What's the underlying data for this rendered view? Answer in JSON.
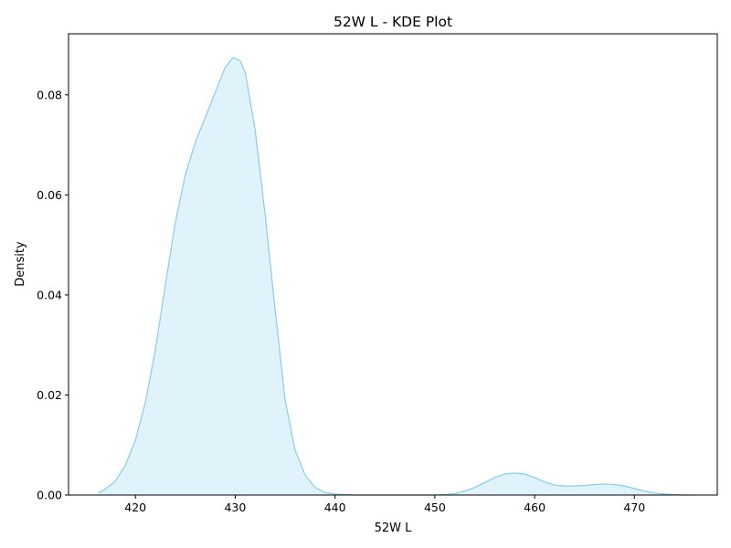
{
  "chart_data": {
    "type": "area",
    "title": "52W L  - KDE Plot",
    "xlabel": "52W L",
    "ylabel": "Density",
    "xlim": [
      413.3,
      478.3
    ],
    "ylim": [
      0,
      0.0922
    ],
    "xticks": [
      420,
      430,
      440,
      450,
      460,
      470
    ],
    "yticks": [
      0.0,
      0.02,
      0.04,
      0.06,
      0.08
    ],
    "ytick_labels": [
      "0.00",
      "0.02",
      "0.04",
      "0.06",
      "0.08"
    ],
    "grid": false,
    "legend": "none",
    "series": [
      {
        "x": [
          416.3,
          417,
          418,
          419,
          420,
          421,
          422,
          423,
          424,
          425,
          426,
          427,
          428,
          429,
          429.8,
          430.5,
          431,
          432,
          433,
          434,
          435,
          436,
          437,
          438,
          439,
          440,
          441,
          442,
          444,
          446,
          448,
          450,
          451,
          452,
          453,
          454,
          455,
          456,
          457,
          458,
          459,
          460,
          461,
          462,
          463,
          464,
          465,
          466,
          467,
          468,
          469,
          470,
          471,
          472,
          473,
          474,
          475,
          475.6
        ],
        "y": [
          0.0004,
          0.0012,
          0.0028,
          0.006,
          0.011,
          0.0185,
          0.029,
          0.042,
          0.0545,
          0.064,
          0.0705,
          0.0755,
          0.0805,
          0.0855,
          0.0875,
          0.0868,
          0.0845,
          0.073,
          0.056,
          0.037,
          0.019,
          0.009,
          0.004,
          0.0015,
          0.0005,
          0.0002,
          0.0001,
          0.0,
          0.0,
          0.0,
          0.0,
          0.0,
          0.0001,
          0.0003,
          0.0008,
          0.0015,
          0.0025,
          0.0035,
          0.0042,
          0.0044,
          0.0042,
          0.0035,
          0.0026,
          0.002,
          0.0018,
          0.0018,
          0.0019,
          0.0021,
          0.0022,
          0.0021,
          0.0018,
          0.0013,
          0.0008,
          0.0004,
          0.0002,
          0.0001,
          0.0,
          0.0
        ],
        "fill_color": "#87ceeb",
        "line_color": "#87ceeb"
      }
    ]
  }
}
